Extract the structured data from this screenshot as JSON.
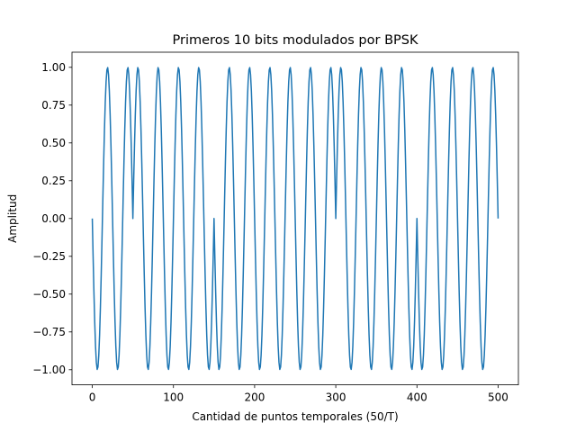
{
  "chart_data": {
    "type": "line",
    "title": "Primeros 10 bits modulados por BPSK",
    "xlabel": "Cantidad de puntos temporales (50/T)",
    "ylabel": "Amplitud",
    "xlim": [
      -25,
      525
    ],
    "ylim": [
      -1.1,
      1.1
    ],
    "xticks": [
      0,
      100,
      200,
      300,
      400,
      500
    ],
    "xtick_labels": [
      "0",
      "100",
      "200",
      "300",
      "400",
      "500"
    ],
    "yticks": [
      -1.0,
      -0.75,
      -0.5,
      -0.25,
      0.0,
      0.25,
      0.5,
      0.75,
      1.0
    ],
    "ytick_labels": [
      "−1.00",
      "−0.75",
      "−0.50",
      "−0.25",
      "0.00",
      "0.25",
      "0.50",
      "0.75",
      "1.00"
    ],
    "grid": false,
    "series": [
      {
        "color": "#1f77b4",
        "samples_per_bit": 50,
        "cycles_per_bit": 2,
        "bits": [
          0,
          1,
          1,
          0,
          0,
          0,
          1,
          1,
          0,
          0
        ],
        "symbol_map": {
          "0": -1,
          "1": 1
        },
        "waveform": "symbol * sin(2*pi*cycles_per_bit*n/samples_per_bit)",
        "x_range": [
          0,
          500
        ]
      }
    ]
  }
}
